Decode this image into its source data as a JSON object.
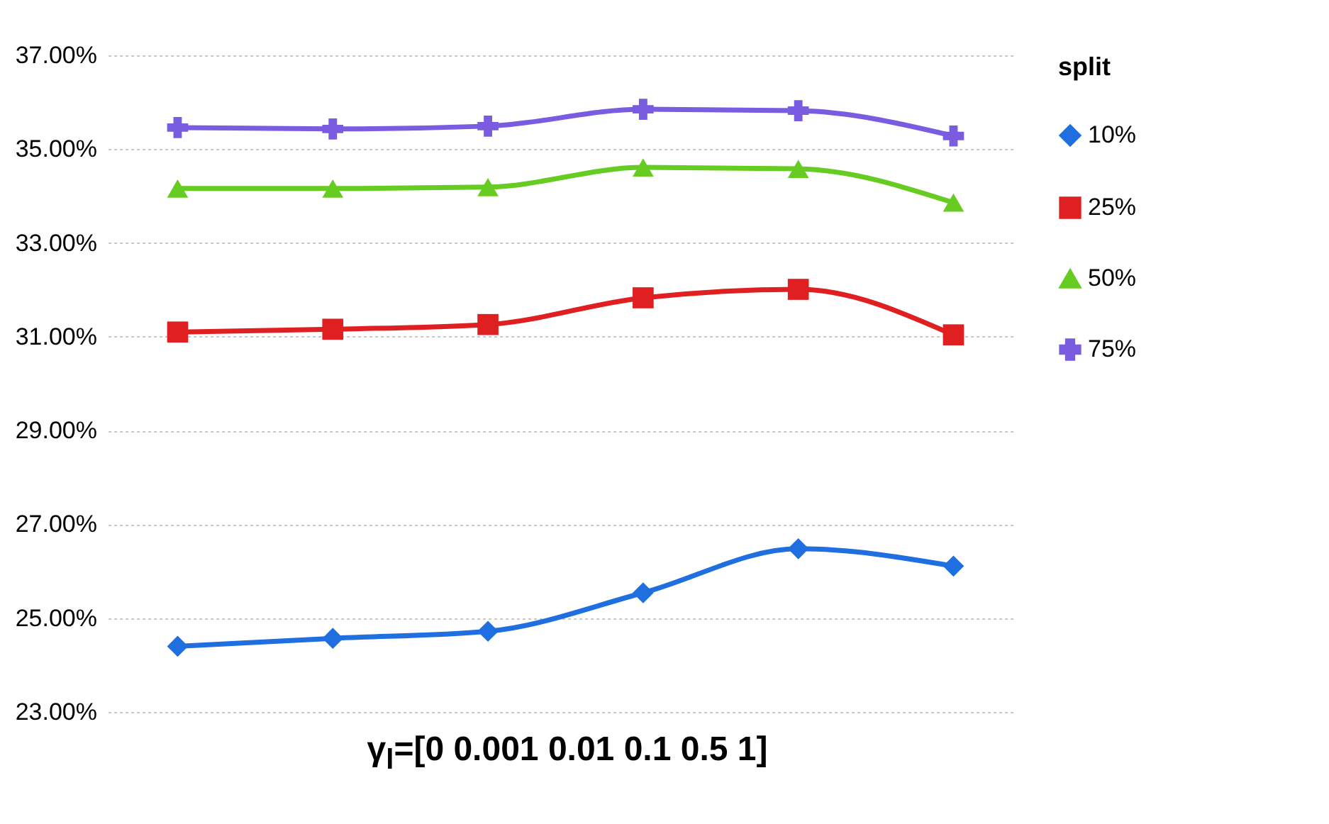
{
  "chart_data": {
    "type": "line",
    "xlabel": "γ$_{l}$=[0 0.001 0.01 0.1 0.5 1]",
    "legend_title": "split",
    "legend": "right",
    "grid": "y",
    "categories": [
      null,
      null,
      null,
      null,
      null,
      null
    ],
    "ylim": [
      23,
      37
    ],
    "yticks": [
      {
        "value": 23,
        "label": "23.00%"
      },
      {
        "value": 25,
        "label": "25.00%"
      },
      {
        "value": 27,
        "label": "27.00%"
      },
      {
        "value": 29,
        "label": "29.00%"
      },
      {
        "value": 31,
        "label": "31.00%"
      },
      {
        "value": 33,
        "label": "33.00%"
      },
      {
        "value": 35,
        "label": "35.00%"
      },
      {
        "value": 37,
        "label": "37.00%"
      }
    ],
    "series": [
      {
        "name": "10%",
        "color": "#1f6fe0",
        "marker": "diamond",
        "values": [
          24.4,
          24.57,
          24.72,
          25.54,
          26.48,
          26.11
        ]
      },
      {
        "name": "25%",
        "color": "#e02020",
        "marker": "square",
        "values": [
          31.1,
          31.16,
          31.26,
          31.83,
          32.01,
          31.04
        ]
      },
      {
        "name": "50%",
        "color": "#66cc22",
        "marker": "triangle",
        "values": [
          34.16,
          34.16,
          34.19,
          34.61,
          34.58,
          33.86
        ]
      },
      {
        "name": "75%",
        "color": "#7a5ce0",
        "marker": "cross",
        "values": [
          35.46,
          35.43,
          35.49,
          35.85,
          35.82,
          35.28
        ]
      }
    ]
  }
}
